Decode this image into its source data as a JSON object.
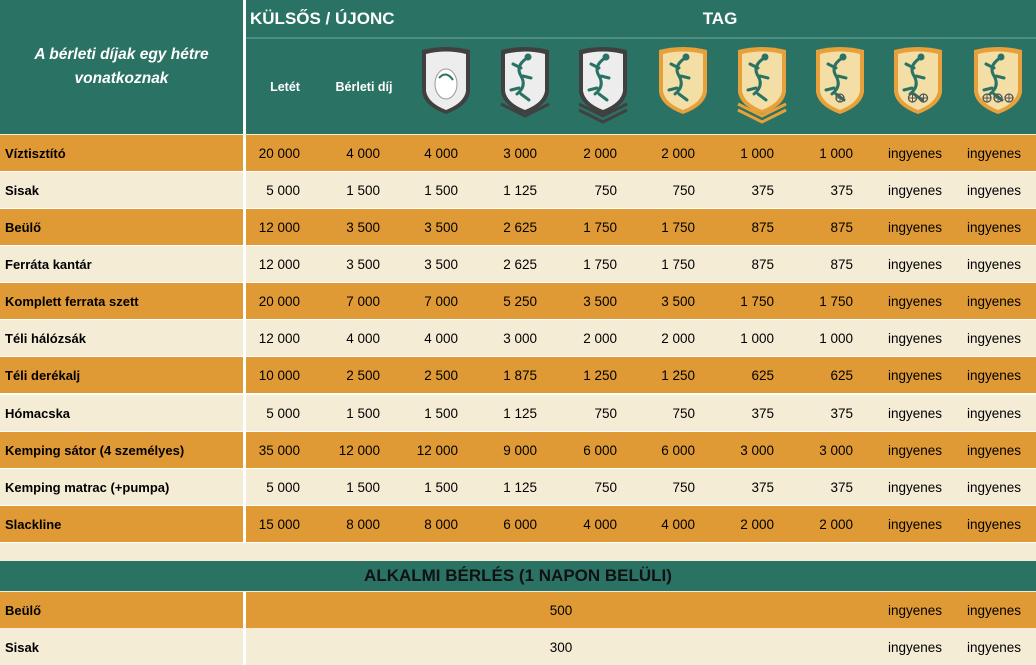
{
  "header": {
    "intro_line1": "A bérleti díjak egy hétre",
    "intro_line2": "vonatkoznak",
    "kulsos_label": "KÜLSŐS / ÚJONC",
    "tag_label": "TAG",
    "letet_label": "Letét",
    "berleti_dij_label": "Bérleti díj",
    "badges": [
      {
        "style": "grey-egg",
        "bars": 0,
        "marks": 0
      },
      {
        "style": "grey",
        "bars": 1,
        "marks": 0
      },
      {
        "style": "grey",
        "bars": 2,
        "marks": 0
      },
      {
        "style": "gold",
        "bars": 0,
        "marks": 0
      },
      {
        "style": "gold",
        "bars": 2,
        "marks": 0
      },
      {
        "style": "gold",
        "bars": 0,
        "marks": 1
      },
      {
        "style": "gold",
        "bars": 0,
        "marks": 2
      },
      {
        "style": "gold",
        "bars": 0,
        "marks": 3
      }
    ]
  },
  "colors": {
    "teal": "#2a7264",
    "orange": "#e09a35",
    "cream": "#f5ecd6"
  },
  "rows": [
    {
      "label": "Víztisztító",
      "values": [
        "20 000",
        "4 000",
        "4 000",
        "3 000",
        "2 000",
        "2 000",
        "1 000",
        "1 000",
        "ingyenes",
        "ingyenes"
      ]
    },
    {
      "label": "Sisak",
      "values": [
        "5 000",
        "1 500",
        "1 500",
        "1 125",
        "750",
        "750",
        "375",
        "375",
        "ingyenes",
        "ingyenes"
      ]
    },
    {
      "label": "Beülő",
      "values": [
        "12 000",
        "3 500",
        "3 500",
        "2 625",
        "1 750",
        "1 750",
        "875",
        "875",
        "ingyenes",
        "ingyenes"
      ]
    },
    {
      "label": "Ferráta kantár",
      "values": [
        "12 000",
        "3 500",
        "3 500",
        "2 625",
        "1 750",
        "1 750",
        "875",
        "875",
        "ingyenes",
        "ingyenes"
      ]
    },
    {
      "label": "Komplett ferrata szett",
      "values": [
        "20 000",
        "7 000",
        "7 000",
        "5 250",
        "3 500",
        "3 500",
        "1 750",
        "1 750",
        "ingyenes",
        "ingyenes"
      ]
    },
    {
      "label": "Téli hálózsák",
      "values": [
        "12 000",
        "4 000",
        "4 000",
        "3 000",
        "2 000",
        "2 000",
        "1 000",
        "1 000",
        "ingyenes",
        "ingyenes"
      ]
    },
    {
      "label": "Téli derékalj",
      "values": [
        "10 000",
        "2 500",
        "2 500",
        "1 875",
        "1 250",
        "1 250",
        "625",
        "625",
        "ingyenes",
        "ingyenes"
      ]
    },
    {
      "label": "Hómacska",
      "values": [
        "5 000",
        "1 500",
        "1 500",
        "1 125",
        "750",
        "750",
        "375",
        "375",
        "ingyenes",
        "ingyenes"
      ]
    },
    {
      "label": "Kemping sátor (4 személyes)",
      "values": [
        "35 000",
        "12 000",
        "12 000",
        "9 000",
        "6 000",
        "6 000",
        "3 000",
        "3 000",
        "ingyenes",
        "ingyenes"
      ]
    },
    {
      "label": "Kemping matrac (+pumpa)",
      "values": [
        "5 000",
        "1 500",
        "1 500",
        "1 125",
        "750",
        "750",
        "375",
        "375",
        "ingyenes",
        "ingyenes"
      ]
    },
    {
      "label": "Slackline",
      "values": [
        "15 000",
        "8 000",
        "8 000",
        "6 000",
        "4 000",
        "4 000",
        "2 000",
        "2 000",
        "ingyenes",
        "ingyenes"
      ]
    }
  ],
  "alkalmi": {
    "title": "ALKALMI BÉRLÉS (1 NAPON BELÜLI)",
    "rows": [
      {
        "label": "Beülő",
        "price": "500",
        "tag_a": "ingyenes",
        "tag_b": "ingyenes"
      },
      {
        "label": "Sisak",
        "price": "300",
        "tag_a": "ingyenes",
        "tag_b": "ingyenes"
      }
    ]
  }
}
